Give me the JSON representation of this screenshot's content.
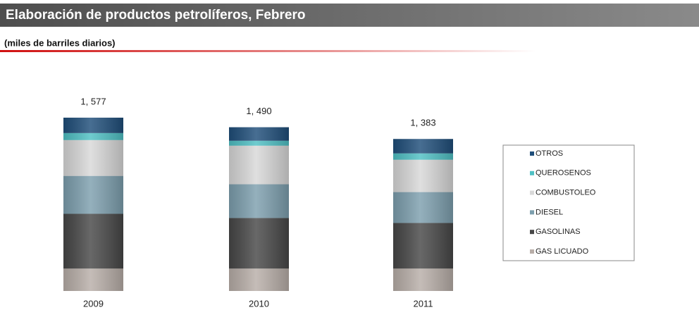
{
  "chart_data": {
    "type": "stacked_bar",
    "title": "Elaboración de productos petrolíferos, Febrero",
    "subtitle": "(miles de barriles diarios)",
    "categories": [
      "2009",
      "2010",
      "2011"
    ],
    "totals": [
      1577,
      1490,
      1383
    ],
    "total_labels": [
      "1, 577",
      "1, 490",
      "1, 383"
    ],
    "series": [
      {
        "name": "GAS LICUADO",
        "color": "#b8aea8",
        "values": [
          204,
          204,
          204
        ]
      },
      {
        "name": "GASOLINAS",
        "color": "#474747",
        "values": [
          498,
          460,
          415
        ]
      },
      {
        "name": "DIESEL",
        "color": "#7d9fae",
        "values": [
          345,
          307,
          281
        ]
      },
      {
        "name": "COMBUSTOLEO",
        "color": "#d8d8d8",
        "values": [
          326,
          351,
          294
        ]
      },
      {
        "name": "QUEROSENOS",
        "color": "#4fc0c4",
        "values": [
          64,
          45,
          58
        ]
      },
      {
        "name": "OTROS",
        "color": "#1f4e7a",
        "values": [
          140,
          123,
          131
        ]
      }
    ],
    "legend": "right"
  }
}
